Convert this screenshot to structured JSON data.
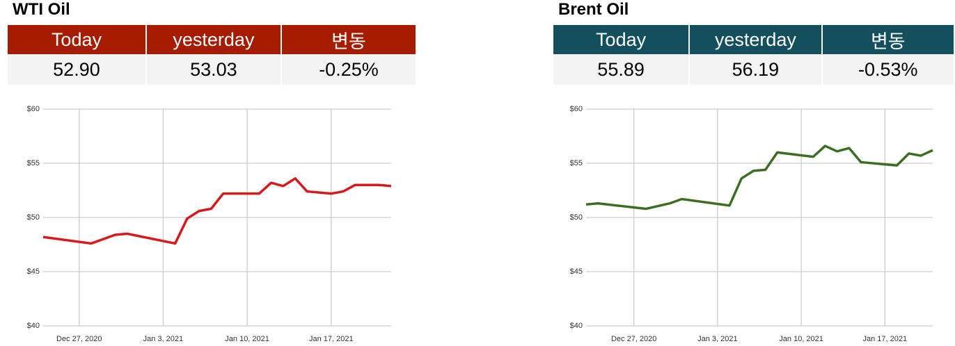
{
  "tables": [
    {
      "header": [
        "Today",
        "yesterday",
        "변동"
      ],
      "row": [
        "52.90",
        "53.03",
        "-0.25%"
      ],
      "color": "#a61c00"
    },
    {
      "header": [
        "Today",
        "yesterday",
        "변동"
      ],
      "row": [
        "55.89",
        "56.19",
        "-0.53%"
      ],
      "color": "#134f5c"
    }
  ],
  "chart_data": [
    {
      "type": "line",
      "title": "WTI Oil",
      "color": "#d7191c",
      "x": [
        "2020-12-24",
        "2020-12-28",
        "2020-12-30",
        "2020-12-31",
        "2021-01-04",
        "2021-01-05",
        "2021-01-06",
        "2021-01-07",
        "2021-01-08",
        "2021-01-11",
        "2021-01-12",
        "2021-01-13",
        "2021-01-14",
        "2021-01-15",
        "2021-01-17",
        "2021-01-18",
        "2021-01-19",
        "2021-01-20",
        "2021-01-21",
        "2021-01-22"
      ],
      "values": [
        48.2,
        47.6,
        48.4,
        48.5,
        47.6,
        49.9,
        50.6,
        50.8,
        52.2,
        52.2,
        53.2,
        52.9,
        53.6,
        52.4,
        52.2,
        52.4,
        53.0,
        53.0,
        53.0,
        52.9
      ],
      "xlim": [
        "2020-12-24",
        "2021-01-22"
      ],
      "xticks": [
        {
          "value": "2020-12-27",
          "label": "Dec 27, 2020"
        },
        {
          "value": "2021-01-03",
          "label": "Jan 3, 2021"
        },
        {
          "value": "2021-01-10",
          "label": "Jan 10, 2021"
        },
        {
          "value": "2021-01-17",
          "label": "Jan 17, 2021"
        }
      ],
      "ylim": [
        40,
        60
      ],
      "yticks": [
        {
          "value": 40,
          "label": "$40"
        },
        {
          "value": 45,
          "label": "$45"
        },
        {
          "value": 50,
          "label": "$50"
        },
        {
          "value": 55,
          "label": "$55"
        },
        {
          "value": 60,
          "label": "$60"
        }
      ],
      "grid": true
    },
    {
      "type": "line",
      "title": "Brent Oil",
      "color": "#3b6e22",
      "x": [
        "2020-12-23",
        "2020-12-24",
        "2020-12-28",
        "2020-12-30",
        "2020-12-31",
        "2021-01-04",
        "2021-01-05",
        "2021-01-06",
        "2021-01-07",
        "2021-01-08",
        "2021-01-11",
        "2021-01-12",
        "2021-01-13",
        "2021-01-14",
        "2021-01-15",
        "2021-01-18",
        "2021-01-19",
        "2021-01-20",
        "2021-01-21"
      ],
      "values": [
        51.2,
        51.3,
        50.8,
        51.3,
        51.7,
        51.1,
        53.6,
        54.3,
        54.4,
        56.0,
        55.6,
        56.6,
        56.1,
        56.4,
        55.1,
        54.8,
        55.9,
        55.7,
        56.2
      ],
      "xlim": [
        "2020-12-23",
        "2021-01-21"
      ],
      "xticks": [
        {
          "value": "2020-12-27",
          "label": "Dec 27, 2020"
        },
        {
          "value": "2021-01-03",
          "label": "Jan 3, 2021"
        },
        {
          "value": "2021-01-10",
          "label": "Jan 10, 2021"
        },
        {
          "value": "2021-01-17",
          "label": "Jan 17, 2021"
        }
      ],
      "ylim": [
        40,
        60
      ],
      "yticks": [
        {
          "value": 40,
          "label": "$40"
        },
        {
          "value": 45,
          "label": "$45"
        },
        {
          "value": 50,
          "label": "$50"
        },
        {
          "value": 55,
          "label": "$55"
        },
        {
          "value": 60,
          "label": "$60"
        }
      ],
      "grid": true
    }
  ]
}
